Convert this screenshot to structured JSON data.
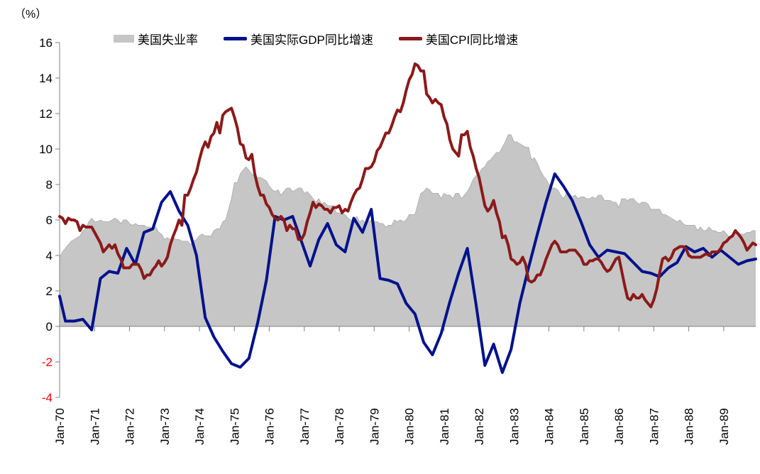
{
  "unit_label": "（%）",
  "legend": [
    {
      "label": "美国失业率"
    },
    {
      "label": "美国实际GDP同比增速"
    },
    {
      "label": "美国CPI同比增速"
    }
  ],
  "axis": {
    "y_ticks": [
      16,
      14,
      12,
      10,
      8,
      6,
      4,
      2,
      0,
      -2,
      -4
    ],
    "ylim": [
      -4,
      16
    ],
    "x_tick_labels": [
      "Jan-70",
      "Jan-71",
      "Jan-72",
      "Jan-73",
      "Jan-74",
      "Jan-75",
      "Jan-76",
      "Jan-77",
      "Jan-78",
      "Jan-79",
      "Jan-80",
      "Jan-81",
      "Jan-82",
      "Jan-83",
      "Jan-84",
      "Jan-85",
      "Jan-86",
      "Jan-87",
      "Jan-88",
      "Jan-89"
    ],
    "axis_color": "#808080",
    "tick_label_color": "#000000",
    "negative_tick_label_color": "#ff0000"
  },
  "chart_data": {
    "type": "combo",
    "x_start": "Jan-70",
    "x_end": "Dec-89",
    "x_unit": "month",
    "grid": false,
    "legend_position": "top",
    "series": [
      {
        "name": "美国失业率",
        "type": "area",
        "freq": "monthly",
        "color": "#c6c6c6",
        "edge_color": "#b2b2b2",
        "values": [
          3.9,
          4.2,
          4.4,
          4.6,
          4.8,
          4.9,
          5.0,
          5.1,
          5.4,
          5.5,
          5.9,
          6.1,
          5.9,
          5.9,
          6.0,
          5.9,
          5.9,
          5.9,
          6.0,
          6.1,
          6.0,
          5.8,
          6.0,
          6.0,
          5.8,
          5.7,
          5.8,
          5.7,
          5.7,
          5.7,
          5.6,
          5.6,
          5.5,
          5.6,
          5.3,
          5.2,
          4.9,
          5.0,
          4.9,
          5.0,
          4.9,
          4.9,
          4.8,
          4.8,
          4.8,
          4.6,
          4.8,
          4.9,
          5.1,
          5.2,
          5.1,
          5.1,
          5.1,
          5.4,
          5.5,
          5.5,
          5.9,
          6.0,
          6.6,
          7.2,
          8.1,
          8.1,
          8.6,
          8.8,
          9.0,
          8.8,
          8.6,
          8.4,
          8.4,
          8.4,
          8.3,
          8.2,
          7.9,
          7.7,
          7.6,
          7.7,
          7.4,
          7.6,
          7.8,
          7.8,
          7.6,
          7.7,
          7.8,
          7.8,
          7.5,
          7.6,
          7.4,
          7.2,
          7.0,
          7.2,
          6.9,
          7.0,
          6.8,
          6.8,
          6.8,
          6.4,
          6.4,
          6.3,
          6.3,
          6.1,
          6.0,
          5.9,
          6.2,
          5.9,
          6.0,
          5.8,
          5.9,
          6.0,
          5.9,
          5.9,
          5.8,
          5.8,
          5.6,
          5.7,
          5.7,
          6.0,
          5.9,
          6.0,
          5.9,
          6.0,
          6.3,
          6.3,
          6.3,
          6.9,
          7.5,
          7.6,
          7.8,
          7.7,
          7.5,
          7.5,
          7.5,
          7.2,
          7.5,
          7.4,
          7.4,
          7.2,
          7.5,
          7.5,
          7.2,
          7.4,
          7.6,
          7.9,
          8.3,
          8.5,
          8.6,
          8.9,
          9.0,
          9.3,
          9.4,
          9.6,
          9.8,
          9.8,
          10.1,
          10.4,
          10.8,
          10.8,
          10.4,
          10.4,
          10.3,
          10.2,
          10.1,
          10.1,
          9.4,
          9.5,
          9.2,
          8.8,
          8.5,
          8.3,
          8.0,
          7.8,
          7.8,
          7.7,
          7.4,
          7.2,
          7.5,
          7.5,
          7.3,
          7.4,
          7.2,
          7.3,
          7.3,
          7.2,
          7.2,
          7.3,
          7.2,
          7.4,
          7.4,
          7.1,
          7.1,
          7.1,
          7.0,
          7.0,
          6.7,
          7.2,
          7.2,
          7.1,
          7.2,
          7.2,
          7.0,
          6.9,
          7.0,
          7.0,
          6.9,
          6.6,
          6.6,
          6.6,
          6.6,
          6.3,
          6.3,
          6.2,
          6.1,
          6.0,
          5.9,
          6.0,
          5.8,
          5.7,
          5.7,
          5.7,
          5.7,
          5.4,
          5.6,
          5.4,
          5.4,
          5.6,
          5.4,
          5.4,
          5.3,
          5.3,
          5.4,
          5.2,
          5.0,
          5.2,
          5.2,
          5.3,
          5.2,
          5.2,
          5.3,
          5.3,
          5.4,
          5.4
        ]
      },
      {
        "name": "美国实际GDP同比增速",
        "type": "line",
        "freq": "quarterly",
        "color": "#00128b",
        "values": [
          1.7,
          0.3,
          0.3,
          0.4,
          -0.2,
          2.7,
          3.1,
          3.0,
          4.4,
          3.5,
          5.3,
          5.5,
          7.0,
          7.6,
          6.5,
          5.7,
          4.0,
          0.5,
          -0.6,
          -1.4,
          -2.1,
          -2.3,
          -1.8,
          0.2,
          2.6,
          6.2,
          6.0,
          6.2,
          4.8,
          3.4,
          4.9,
          5.8,
          4.6,
          4.2,
          6.1,
          5.3,
          6.6,
          2.7,
          2.6,
          2.4,
          1.3,
          0.7,
          -0.9,
          -1.6,
          -0.4,
          1.4,
          3.0,
          4.4,
          1.2,
          -2.2,
          -1.0,
          -2.6,
          -1.3,
          1.3,
          3.3,
          5.2,
          7.0,
          8.6,
          7.9,
          7.1,
          5.9,
          4.6,
          3.9,
          4.3,
          4.2,
          4.1,
          3.6,
          3.1,
          3.0,
          2.8,
          3.3,
          3.6,
          4.5,
          4.2,
          4.4,
          3.9,
          4.3,
          3.9,
          3.5,
          3.7,
          3.8
        ]
      },
      {
        "name": "美国CPI同比增速",
        "type": "line",
        "freq": "monthly",
        "color": "#8b1a1a",
        "values": [
          6.2,
          6.1,
          5.8,
          6.1,
          6.0,
          6.0,
          5.9,
          5.4,
          5.7,
          5.6,
          5.6,
          5.6,
          5.3,
          5.0,
          4.7,
          4.2,
          4.4,
          4.6,
          4.4,
          4.6,
          4.1,
          3.8,
          3.3,
          3.3,
          3.3,
          3.5,
          3.5,
          3.5,
          3.2,
          2.7,
          2.9,
          2.9,
          3.2,
          3.4,
          3.7,
          3.4,
          3.6,
          3.9,
          4.6,
          5.1,
          5.5,
          6.0,
          5.7,
          7.4,
          7.4,
          7.8,
          8.3,
          8.7,
          9.4,
          10.0,
          10.4,
          10.1,
          10.7,
          10.9,
          11.5,
          10.9,
          11.9,
          12.1,
          12.2,
          12.3,
          11.8,
          11.2,
          10.3,
          10.2,
          9.5,
          9.4,
          9.7,
          8.6,
          7.9,
          7.4,
          7.4,
          6.9,
          6.7,
          6.3,
          6.1,
          6.0,
          6.2,
          6.0,
          5.4,
          5.7,
          5.5,
          5.5,
          4.9,
          4.9,
          5.2,
          5.9,
          6.4,
          7.0,
          6.7,
          6.9,
          6.8,
          6.6,
          6.6,
          6.4,
          6.7,
          6.7,
          6.8,
          6.4,
          6.6,
          6.5,
          7.0,
          7.4,
          7.7,
          7.8,
          8.3,
          8.9,
          8.9,
          9.0,
          9.3,
          9.9,
          10.1,
          10.5,
          10.9,
          10.9,
          11.3,
          11.8,
          12.2,
          12.1,
          12.6,
          13.3,
          13.9,
          14.2,
          14.8,
          14.7,
          14.4,
          14.4,
          13.1,
          12.9,
          12.6,
          12.8,
          12.6,
          12.5,
          11.8,
          11.4,
          10.5,
          10.0,
          9.8,
          9.6,
          10.8,
          10.8,
          11.0,
          10.1,
          9.6,
          8.9,
          8.4,
          7.6,
          6.8,
          6.5,
          6.7,
          7.1,
          6.4,
          5.9,
          5.0,
          5.1,
          4.6,
          3.8,
          3.7,
          3.5,
          3.6,
          3.9,
          3.5,
          2.6,
          2.5,
          2.6,
          2.9,
          2.9,
          3.3,
          3.8,
          4.2,
          4.6,
          4.8,
          4.6,
          4.2,
          4.2,
          4.2,
          4.3,
          4.3,
          4.3,
          4.1,
          3.9,
          3.5,
          3.5,
          3.7,
          3.7,
          3.8,
          3.8,
          3.6,
          3.3,
          3.1,
          3.2,
          3.5,
          3.8,
          3.9,
          3.1,
          2.3,
          1.6,
          1.5,
          1.8,
          1.6,
          1.6,
          1.8,
          1.5,
          1.3,
          1.1,
          1.5,
          2.1,
          3.0,
          3.8,
          3.9,
          3.7,
          3.9,
          4.3,
          4.4,
          4.5,
          4.5,
          4.4,
          4.0,
          3.9,
          3.9,
          3.9,
          3.9,
          4.0,
          4.1,
          4.0,
          4.2,
          4.2,
          4.2,
          4.4,
          4.7,
          4.8,
          5.0,
          5.1,
          5.4,
          5.2,
          5.0,
          4.7,
          4.3,
          4.5,
          4.7,
          4.6
        ]
      }
    ]
  }
}
